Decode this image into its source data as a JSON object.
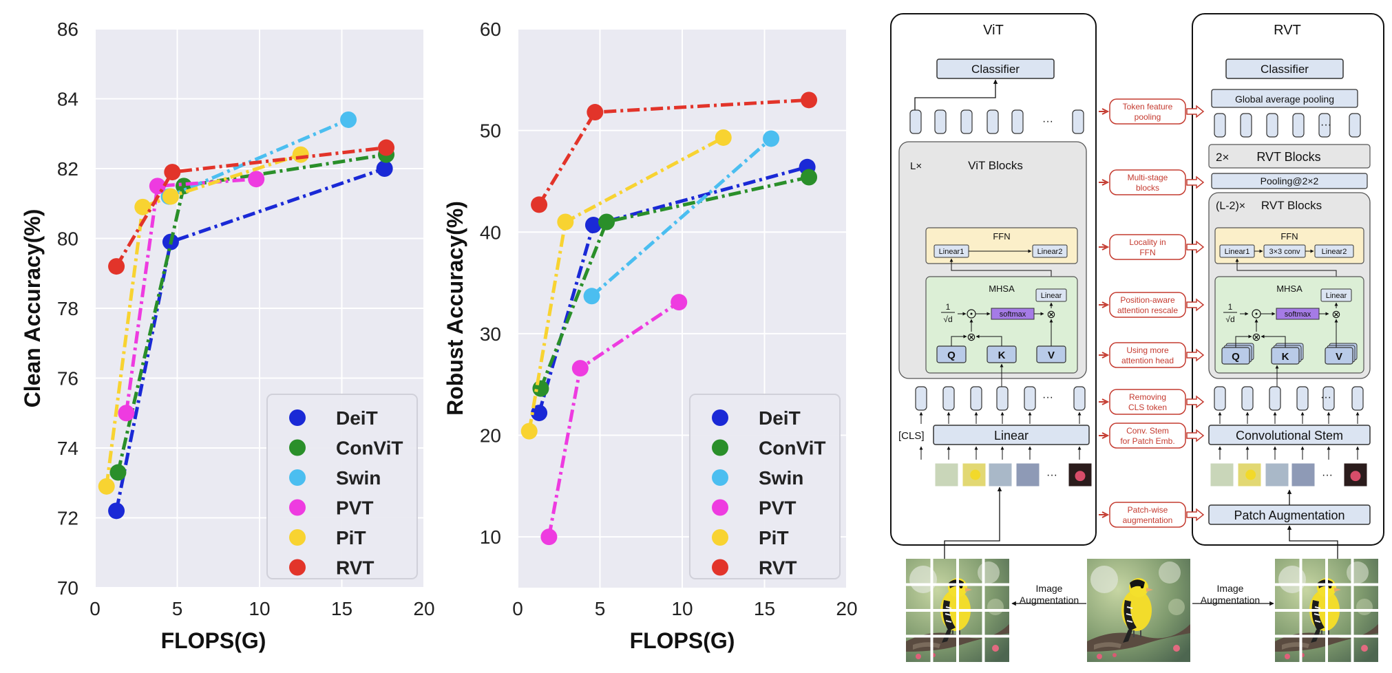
{
  "chart_data": [
    {
      "type": "line",
      "ylabel": "Clean Accuracy(%)",
      "xlabel": "FLOPS(G)",
      "xlim": [
        0,
        20
      ],
      "ylim": [
        70,
        86
      ],
      "x_ticks": [
        0,
        5,
        10,
        15,
        20
      ],
      "y_ticks": [
        70,
        72,
        74,
        76,
        78,
        80,
        82,
        84,
        86
      ],
      "grid": true,
      "legend_position": "bottom-right",
      "series": [
        {
          "name": "DeiT",
          "color": "#1a29d6",
          "points": [
            [
              1.3,
              72.2
            ],
            [
              4.6,
              79.9
            ],
            [
              17.6,
              82.0
            ]
          ]
        },
        {
          "name": "ConViT",
          "color": "#2a8f2a",
          "points": [
            [
              1.4,
              73.3
            ],
            [
              5.4,
              81.5
            ],
            [
              17.7,
              82.4
            ]
          ]
        },
        {
          "name": "Swin",
          "color": "#4bbef0",
          "points": [
            [
              4.5,
              81.2
            ],
            [
              15.4,
              83.4
            ]
          ]
        },
        {
          "name": "PVT",
          "color": "#ee3be0",
          "points": [
            [
              1.9,
              75.0
            ],
            [
              3.8,
              81.5
            ],
            [
              9.8,
              81.7
            ]
          ]
        },
        {
          "name": "PiT",
          "color": "#f8d331",
          "points": [
            [
              0.7,
              72.9
            ],
            [
              2.9,
              80.9
            ],
            [
              4.6,
              81.2
            ],
            [
              12.5,
              82.4
            ]
          ]
        },
        {
          "name": "RVT",
          "color": "#e2342a",
          "points": [
            [
              1.3,
              79.2
            ],
            [
              4.7,
              81.9
            ],
            [
              17.7,
              82.6
            ]
          ]
        }
      ]
    },
    {
      "type": "line",
      "ylabel": "Robust Accuracy(%)",
      "xlabel": "FLOPS(G)",
      "xlim": [
        0,
        20
      ],
      "ylim": [
        5,
        60
      ],
      "x_ticks": [
        0,
        5,
        10,
        15,
        20
      ],
      "y_ticks": [
        10,
        20,
        30,
        40,
        50,
        60
      ],
      "grid": true,
      "legend_position": "bottom-right",
      "series": [
        {
          "name": "DeiT",
          "color": "#1a29d6",
          "points": [
            [
              1.3,
              22.2
            ],
            [
              4.6,
              40.7
            ],
            [
              17.6,
              46.4
            ]
          ]
        },
        {
          "name": "ConViT",
          "color": "#2a8f2a",
          "points": [
            [
              1.4,
              24.6
            ],
            [
              5.4,
              41.0
            ],
            [
              17.7,
              45.4
            ]
          ]
        },
        {
          "name": "Swin",
          "color": "#4bbef0",
          "points": [
            [
              4.5,
              33.7
            ],
            [
              15.4,
              49.2
            ]
          ]
        },
        {
          "name": "PVT",
          "color": "#ee3be0",
          "points": [
            [
              1.9,
              10.0
            ],
            [
              3.8,
              26.6
            ],
            [
              9.8,
              33.1
            ]
          ]
        },
        {
          "name": "PiT",
          "color": "#f8d331",
          "points": [
            [
              0.7,
              20.4
            ],
            [
              2.9,
              41.0
            ],
            [
              12.5,
              49.3
            ]
          ]
        },
        {
          "name": "RVT",
          "color": "#e2342a",
          "points": [
            [
              1.3,
              42.7
            ],
            [
              4.7,
              51.8
            ],
            [
              17.7,
              53.0
            ]
          ]
        }
      ]
    }
  ],
  "diagram": {
    "vit": {
      "title": "ViT",
      "classifier": "Classifier",
      "blocks_count": "L×",
      "blocks": "ViT Blocks",
      "ffn": "FFN",
      "linear1": "Linear1",
      "linear2": "Linear2",
      "mhsa": "MHSA",
      "linear": "Linear",
      "softmax": "softmax",
      "q": "Q",
      "k": "K",
      "v": "V",
      "cls": "[CLS]",
      "embed": "Linear",
      "dots": "···"
    },
    "rvt": {
      "title": "RVT",
      "classifier": "Classifier",
      "gap": "Global average pooling",
      "blocks_top_count": "2×",
      "blocks_top": "RVT Blocks",
      "pooling": "Pooling@2×2",
      "blocks_count": "(L-2)×",
      "blocks": "RVT Blocks",
      "ffn": "FFN",
      "linear1": "Linear1",
      "conv": "3×3 conv",
      "linear2": "Linear2",
      "mhsa": "MHSA",
      "linear": "Linear",
      "softmax": "softmax",
      "q": "Q",
      "k": "K",
      "v": "V",
      "stem": "Convolutional Stem",
      "patch_aug": "Patch Augmentation",
      "dots": "···"
    },
    "frac_num": "1",
    "frac_den": "√d",
    "changes": [
      [
        "Token feature",
        "pooling"
      ],
      [
        "Multi-stage",
        "blocks"
      ],
      [
        "Locality in",
        "FFN"
      ],
      [
        "Position-aware",
        "attention rescale"
      ],
      [
        "Using more",
        "attention head"
      ],
      [
        "Removing",
        "CLS token"
      ],
      [
        "Conv. Stem",
        "for Patch Emb."
      ],
      [
        "Patch-wise",
        "augmentation"
      ]
    ],
    "image_aug_left": [
      "Image",
      "Augmentation"
    ],
    "image_aug_right": [
      "Image",
      "Augmentation"
    ]
  }
}
